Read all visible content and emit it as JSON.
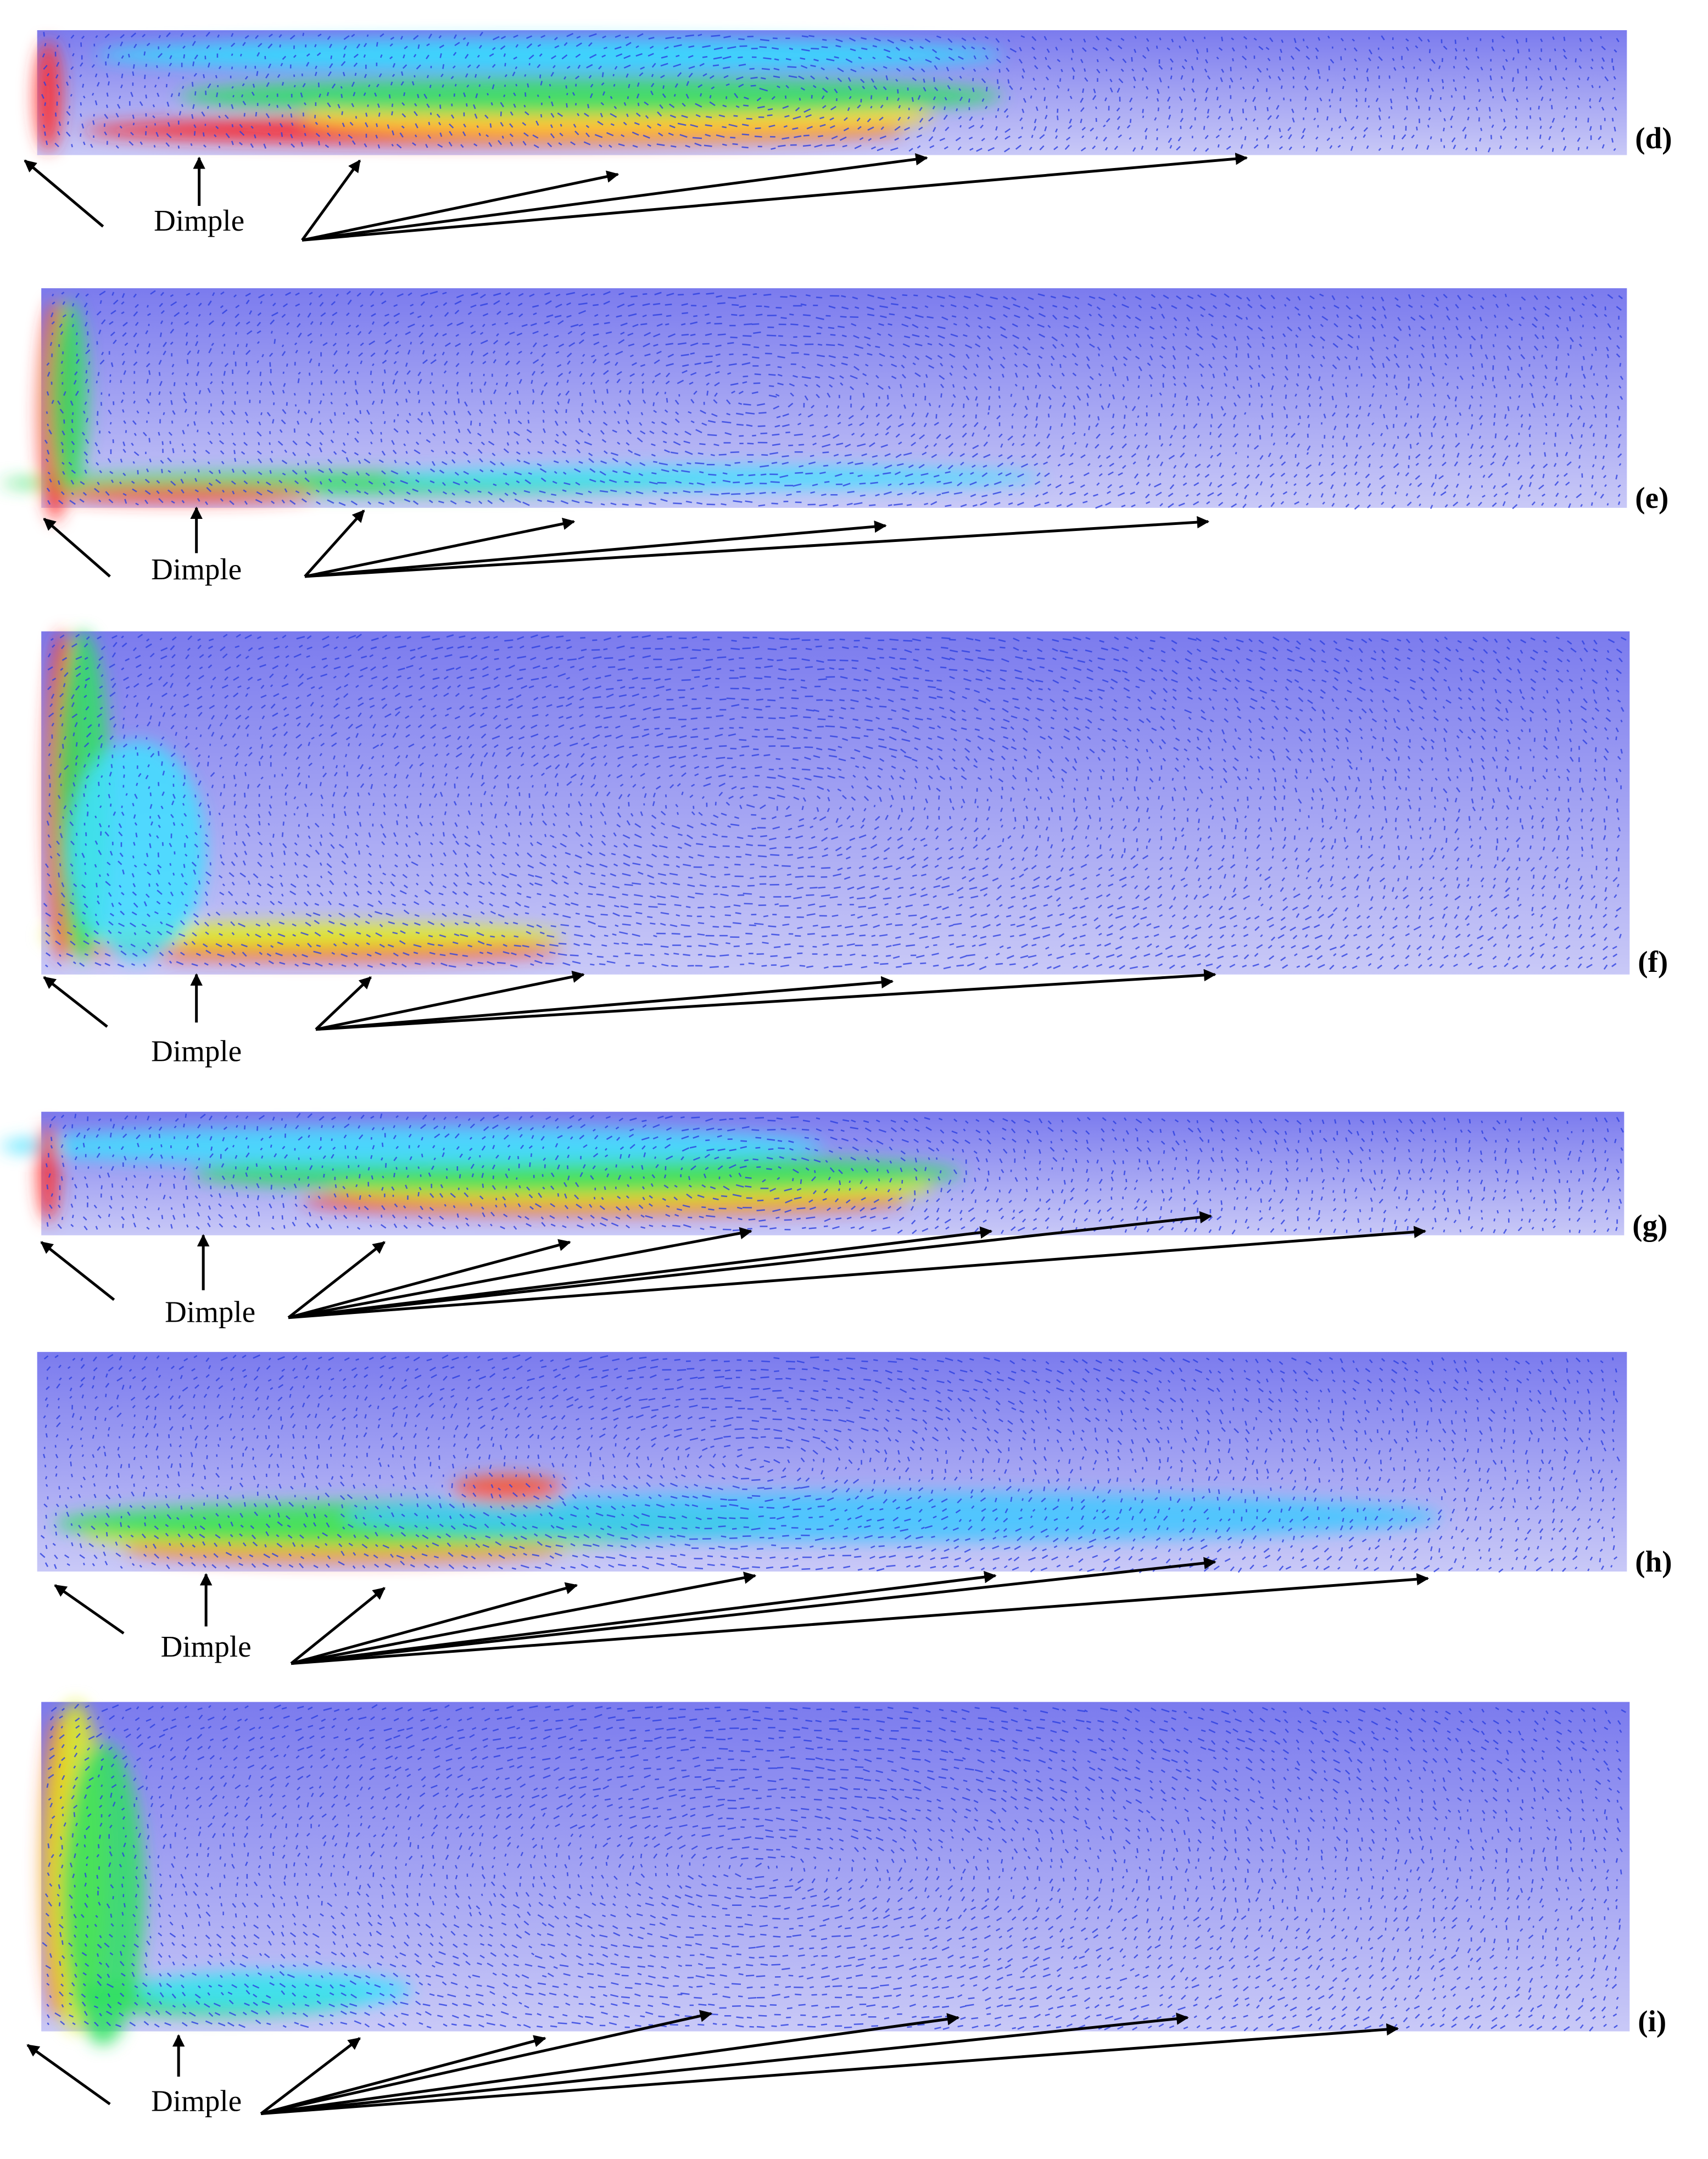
{
  "panels": [
    {
      "label": "(d)",
      "annotation": "Dimple"
    },
    {
      "label": "(e)",
      "annotation": "Dimple"
    },
    {
      "label": "(f)",
      "annotation": "Dimple"
    },
    {
      "label": "(g)",
      "annotation": "Dimple"
    },
    {
      "label": "(h)",
      "annotation": "Dimple"
    },
    {
      "label": "(i)",
      "annotation": "Dimple"
    }
  ]
}
